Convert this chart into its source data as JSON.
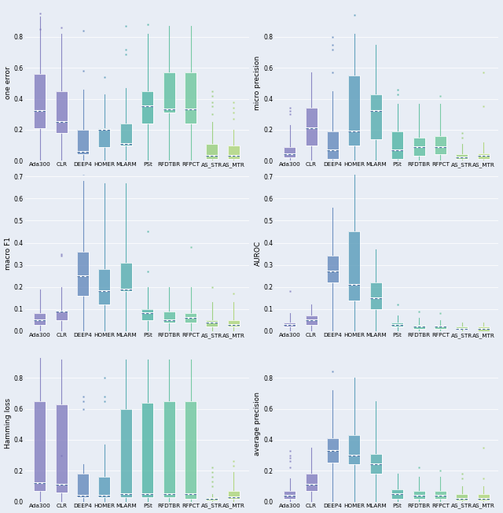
{
  "algorithms": [
    "Ada300",
    "CLR",
    "DEEP4",
    "HOMER",
    "MLARM",
    "PSt",
    "RFDTBR",
    "RFPCT",
    "AS_STR",
    "AS_MTR"
  ],
  "colors": [
    "#7b75bb",
    "#7b75bb",
    "#5b82b8",
    "#4d95b5",
    "#4aa8aa",
    "#44b09e",
    "#55bc9a",
    "#65c496",
    "#93cc72",
    "#aad470"
  ],
  "background_color": "#e8edf5",
  "metrics": [
    "one error",
    "micro precision",
    "macro F1",
    "AUROC",
    "Hamming loss",
    "average precision"
  ],
  "metric_keys": [
    "one_error",
    "micro_precision",
    "macro_f1",
    "auroc",
    "hamming_loss",
    "average_precision"
  ],
  "one_error": {
    "Ada300": {
      "q1": 0.21,
      "median": 0.32,
      "q3": 0.56,
      "whislo": 0.0,
      "whishi": 0.93,
      "fliers": [
        0.95,
        0.85
      ]
    },
    "CLR": {
      "q1": 0.18,
      "median": 0.25,
      "q3": 0.45,
      "whislo": 0.0,
      "whishi": 0.82,
      "fliers": [
        0.86
      ]
    },
    "DEEP4": {
      "q1": 0.04,
      "median": 0.06,
      "q3": 0.2,
      "whislo": 0.0,
      "whishi": 0.46,
      "fliers": [
        0.58,
        0.84
      ]
    },
    "HOMER": {
      "q1": 0.09,
      "median": 0.2,
      "q3": 0.21,
      "whislo": 0.0,
      "whishi": 0.43,
      "fliers": [
        0.54
      ]
    },
    "MLARM": {
      "q1": 0.1,
      "median": 0.11,
      "q3": 0.24,
      "whislo": 0.0,
      "whishi": 0.47,
      "fliers": [
        0.69,
        0.72,
        0.87
      ]
    },
    "PSt": {
      "q1": 0.24,
      "median": 0.35,
      "q3": 0.45,
      "whislo": 0.0,
      "whishi": 0.82,
      "fliers": [
        0.88
      ]
    },
    "RFDTBR": {
      "q1": 0.31,
      "median": 0.33,
      "q3": 0.57,
      "whislo": 0.0,
      "whishi": 0.87,
      "fliers": []
    },
    "RFPCT": {
      "q1": 0.24,
      "median": 0.33,
      "q3": 0.57,
      "whislo": 0.0,
      "whishi": 0.87,
      "fliers": []
    },
    "AS_STR": {
      "q1": 0.01,
      "median": 0.03,
      "q3": 0.11,
      "whislo": 0.0,
      "whishi": 0.25,
      "fliers": [
        0.3,
        0.35,
        0.38,
        0.42,
        0.45
      ]
    },
    "AS_MTR": {
      "q1": 0.01,
      "median": 0.03,
      "q3": 0.1,
      "whislo": 0.0,
      "whishi": 0.2,
      "fliers": [
        0.27,
        0.31,
        0.34,
        0.38
      ]
    }
  },
  "micro_precision": {
    "Ada300": {
      "q1": 0.02,
      "median": 0.04,
      "q3": 0.09,
      "whislo": 0.0,
      "whishi": 0.23,
      "fliers": [
        0.3,
        0.32,
        0.34
      ]
    },
    "CLR": {
      "q1": 0.1,
      "median": 0.21,
      "q3": 0.34,
      "whislo": 0.0,
      "whishi": 0.57,
      "fliers": []
    },
    "DEEP4": {
      "q1": 0.01,
      "median": 0.07,
      "q3": 0.19,
      "whislo": 0.0,
      "whishi": 0.45,
      "fliers": [
        0.57,
        0.72,
        0.75,
        0.8
      ]
    },
    "HOMER": {
      "q1": 0.1,
      "median": 0.19,
      "q3": 0.55,
      "whislo": 0.0,
      "whishi": 0.82,
      "fliers": [
        0.94
      ]
    },
    "MLARM": {
      "q1": 0.14,
      "median": 0.32,
      "q3": 0.43,
      "whislo": 0.0,
      "whishi": 0.75,
      "fliers": []
    },
    "PSt": {
      "q1": 0.01,
      "median": 0.07,
      "q3": 0.19,
      "whislo": 0.0,
      "whishi": 0.37,
      "fliers": [
        0.43,
        0.46
      ]
    },
    "RFDTBR": {
      "q1": 0.03,
      "median": 0.09,
      "q3": 0.15,
      "whislo": 0.0,
      "whishi": 0.37,
      "fliers": []
    },
    "RFPCT": {
      "q1": 0.04,
      "median": 0.09,
      "q3": 0.16,
      "whislo": 0.0,
      "whishi": 0.37,
      "fliers": [
        0.42
      ]
    },
    "AS_STR": {
      "q1": 0.01,
      "median": 0.02,
      "q3": 0.04,
      "whislo": 0.0,
      "whishi": 0.11,
      "fliers": [
        0.15,
        0.18
      ]
    },
    "AS_MTR": {
      "q1": 0.01,
      "median": 0.03,
      "q3": 0.05,
      "whislo": 0.0,
      "whishi": 0.12,
      "fliers": [
        0.35,
        0.57
      ]
    }
  },
  "macro_f1": {
    "Ada300": {
      "q1": 0.03,
      "median": 0.05,
      "q3": 0.08,
      "whislo": 0.0,
      "whishi": 0.19,
      "fliers": []
    },
    "CLR": {
      "q1": 0.05,
      "median": 0.09,
      "q3": 0.09,
      "whislo": 0.0,
      "whishi": 0.2,
      "fliers": [
        0.34,
        0.35
      ]
    },
    "DEEP4": {
      "q1": 0.16,
      "median": 0.25,
      "q3": 0.36,
      "whislo": 0.0,
      "whishi": 0.68,
      "fliers": [
        0.71
      ]
    },
    "HOMER": {
      "q1": 0.12,
      "median": 0.18,
      "q3": 0.28,
      "whislo": 0.0,
      "whishi": 0.67,
      "fliers": []
    },
    "MLARM": {
      "q1": 0.18,
      "median": 0.19,
      "q3": 0.31,
      "whislo": 0.0,
      "whishi": 0.67,
      "fliers": []
    },
    "PSt": {
      "q1": 0.05,
      "median": 0.08,
      "q3": 0.1,
      "whislo": 0.0,
      "whishi": 0.2,
      "fliers": [
        0.27,
        0.45
      ]
    },
    "RFDTBR": {
      "q1": 0.04,
      "median": 0.05,
      "q3": 0.09,
      "whislo": 0.0,
      "whishi": 0.2,
      "fliers": []
    },
    "RFPCT": {
      "q1": 0.04,
      "median": 0.06,
      "q3": 0.08,
      "whislo": 0.0,
      "whishi": 0.2,
      "fliers": [
        0.38
      ]
    },
    "AS_STR": {
      "q1": 0.02,
      "median": 0.04,
      "q3": 0.05,
      "whislo": 0.0,
      "whishi": 0.13,
      "fliers": [
        0.2
      ]
    },
    "AS_MTR": {
      "q1": 0.02,
      "median": 0.03,
      "q3": 0.05,
      "whislo": 0.0,
      "whishi": 0.13,
      "fliers": [
        0.17
      ]
    }
  },
  "auroc": {
    "Ada300": {
      "q1": 0.02,
      "median": 0.03,
      "q3": 0.04,
      "whislo": 0.0,
      "whishi": 0.08,
      "fliers": [
        0.18
      ]
    },
    "CLR": {
      "q1": 0.03,
      "median": 0.05,
      "q3": 0.07,
      "whislo": 0.0,
      "whishi": 0.12,
      "fliers": []
    },
    "DEEP4": {
      "q1": 0.22,
      "median": 0.27,
      "q3": 0.34,
      "whislo": 0.0,
      "whishi": 0.56,
      "fliers": []
    },
    "HOMER": {
      "q1": 0.14,
      "median": 0.21,
      "q3": 0.45,
      "whislo": 0.0,
      "whishi": 0.72,
      "fliers": []
    },
    "MLARM": {
      "q1": 0.1,
      "median": 0.15,
      "q3": 0.22,
      "whislo": 0.0,
      "whishi": 0.37,
      "fliers": []
    },
    "PSt": {
      "q1": 0.02,
      "median": 0.03,
      "q3": 0.04,
      "whislo": 0.0,
      "whishi": 0.07,
      "fliers": [
        0.12
      ]
    },
    "RFDTBR": {
      "q1": 0.01,
      "median": 0.02,
      "q3": 0.03,
      "whislo": 0.0,
      "whishi": 0.06,
      "fliers": [
        0.09
      ]
    },
    "RFPCT": {
      "q1": 0.01,
      "median": 0.02,
      "q3": 0.02,
      "whislo": 0.0,
      "whishi": 0.05,
      "fliers": [
        0.08
      ]
    },
    "AS_STR": {
      "q1": 0.01,
      "median": 0.01,
      "q3": 0.02,
      "whislo": 0.0,
      "whishi": 0.04,
      "fliers": []
    },
    "AS_MTR": {
      "q1": 0.0,
      "median": 0.01,
      "q3": 0.02,
      "whislo": 0.0,
      "whishi": 0.04,
      "fliers": []
    }
  },
  "hamming_loss": {
    "Ada300": {
      "q1": 0.07,
      "median": 0.12,
      "q3": 0.65,
      "whislo": 0.0,
      "whishi": 0.93,
      "fliers": []
    },
    "CLR": {
      "q1": 0.06,
      "median": 0.11,
      "q3": 0.63,
      "whislo": 0.0,
      "whishi": 0.92,
      "fliers": [
        0.3
      ]
    },
    "DEEP4": {
      "q1": 0.03,
      "median": 0.04,
      "q3": 0.18,
      "whislo": 0.0,
      "whishi": 0.24,
      "fliers": [
        0.65,
        0.68,
        0.6
      ]
    },
    "HOMER": {
      "q1": 0.03,
      "median": 0.04,
      "q3": 0.16,
      "whislo": 0.0,
      "whishi": 0.37,
      "fliers": [
        0.65,
        0.68,
        0.8
      ]
    },
    "MLARM": {
      "q1": 0.03,
      "median": 0.05,
      "q3": 0.6,
      "whislo": 0.0,
      "whishi": 0.92,
      "fliers": []
    },
    "PSt": {
      "q1": 0.03,
      "median": 0.05,
      "q3": 0.64,
      "whislo": 0.0,
      "whishi": 0.92,
      "fliers": []
    },
    "RFDTBR": {
      "q1": 0.03,
      "median": 0.05,
      "q3": 0.65,
      "whislo": 0.0,
      "whishi": 0.92,
      "fliers": []
    },
    "RFPCT": {
      "q1": 0.02,
      "median": 0.05,
      "q3": 0.65,
      "whislo": 0.0,
      "whishi": 0.92,
      "fliers": []
    },
    "AS_STR": {
      "q1": 0.01,
      "median": 0.02,
      "q3": 0.03,
      "whislo": 0.0,
      "whishi": 0.05,
      "fliers": [
        0.1,
        0.13,
        0.16,
        0.19,
        0.22
      ]
    },
    "AS_MTR": {
      "q1": 0.02,
      "median": 0.03,
      "q3": 0.07,
      "whislo": 0.0,
      "whishi": 0.19,
      "fliers": [
        0.23,
        0.26
      ]
    }
  },
  "average_precision": {
    "Ada300": {
      "q1": 0.02,
      "median": 0.04,
      "q3": 0.07,
      "whislo": 0.0,
      "whishi": 0.15,
      "fliers": [
        0.22,
        0.26,
        0.28,
        0.3,
        0.33
      ]
    },
    "CLR": {
      "q1": 0.07,
      "median": 0.11,
      "q3": 0.18,
      "whislo": 0.0,
      "whishi": 0.35,
      "fliers": []
    },
    "DEEP4": {
      "q1": 0.25,
      "median": 0.33,
      "q3": 0.41,
      "whislo": 0.0,
      "whishi": 0.72,
      "fliers": [
        0.84
      ]
    },
    "HOMER": {
      "q1": 0.24,
      "median": 0.3,
      "q3": 0.43,
      "whislo": 0.0,
      "whishi": 0.8,
      "fliers": []
    },
    "MLARM": {
      "q1": 0.18,
      "median": 0.24,
      "q3": 0.31,
      "whislo": 0.0,
      "whishi": 0.65,
      "fliers": []
    },
    "PSt": {
      "q1": 0.02,
      "median": 0.05,
      "q3": 0.08,
      "whislo": 0.0,
      "whishi": 0.18,
      "fliers": []
    },
    "RFDTBR": {
      "q1": 0.02,
      "median": 0.04,
      "q3": 0.07,
      "whislo": 0.0,
      "whishi": 0.16,
      "fliers": [
        0.22
      ]
    },
    "RFPCT": {
      "q1": 0.02,
      "median": 0.04,
      "q3": 0.07,
      "whislo": 0.0,
      "whishi": 0.16,
      "fliers": [
        0.2
      ]
    },
    "AS_STR": {
      "q1": 0.01,
      "median": 0.02,
      "q3": 0.05,
      "whislo": 0.0,
      "whishi": 0.1,
      "fliers": [
        0.15,
        0.18
      ]
    },
    "AS_MTR": {
      "q1": 0.01,
      "median": 0.02,
      "q3": 0.05,
      "whislo": 0.0,
      "whishi": 0.1,
      "fliers": [
        0.15,
        0.35
      ]
    }
  },
  "ylims": {
    "one_error": [
      0,
      1.0
    ],
    "micro_precision": [
      0,
      1.0
    ],
    "macro_f1": [
      0,
      0.7
    ],
    "auroc": [
      0,
      0.7
    ],
    "hamming_loss": [
      0,
      1.0
    ],
    "average_precision": [
      0,
      1.0
    ]
  },
  "yticks": {
    "one_error": [
      0.0,
      0.2,
      0.4,
      0.6,
      0.8
    ],
    "micro_precision": [
      0.0,
      0.2,
      0.4,
      0.6,
      0.8
    ],
    "macro_f1": [
      0.0,
      0.1,
      0.2,
      0.3,
      0.4,
      0.5,
      0.6,
      0.7
    ],
    "auroc": [
      0.0,
      0.1,
      0.2,
      0.3,
      0.4,
      0.5,
      0.6,
      0.7
    ],
    "hamming_loss": [
      0.0,
      0.2,
      0.4,
      0.6,
      0.8
    ],
    "average_precision": [
      0.0,
      0.2,
      0.4,
      0.6,
      0.8
    ]
  }
}
